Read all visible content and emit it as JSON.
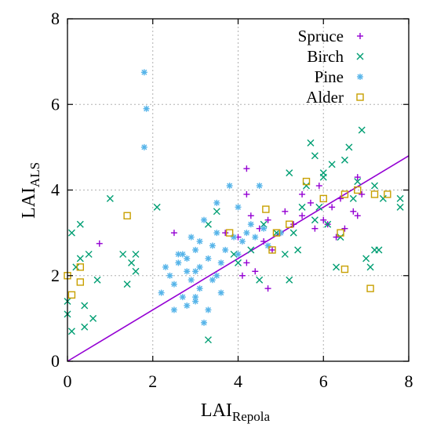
{
  "chart_data": {
    "type": "scatter",
    "title": "",
    "xlabel": "LAI",
    "xlabel_sub": "Repola",
    "ylabel": "LAI",
    "ylabel_sub": "ALS",
    "xlim": [
      0,
      8
    ],
    "ylim": [
      0,
      8
    ],
    "xticks": [
      0,
      2,
      4,
      6,
      8
    ],
    "yticks": [
      0,
      2,
      4,
      6,
      8
    ],
    "grid": true,
    "legend_position": "top-right",
    "reference_line": {
      "from": [
        0,
        0
      ],
      "to": [
        8,
        4.8
      ],
      "color": "#9400d3"
    },
    "series": [
      {
        "name": "Spruce",
        "marker": "plus",
        "color": "#9400d3",
        "points": [
          [
            0.75,
            2.75
          ],
          [
            2.5,
            3.0
          ],
          [
            3.7,
            3.0
          ],
          [
            4.0,
            2.9
          ],
          [
            4.2,
            4.5
          ],
          [
            4.2,
            3.9
          ],
          [
            4.3,
            3.4
          ],
          [
            4.5,
            3.1
          ],
          [
            4.6,
            2.8
          ],
          [
            4.7,
            3.3
          ],
          [
            4.8,
            2.6
          ],
          [
            5.0,
            3.0
          ],
          [
            5.1,
            3.5
          ],
          [
            5.3,
            3.2
          ],
          [
            5.5,
            3.4
          ],
          [
            5.7,
            3.7
          ],
          [
            5.8,
            3.1
          ],
          [
            5.9,
            4.1
          ],
          [
            6.0,
            3.3
          ],
          [
            6.1,
            3.2
          ],
          [
            6.2,
            3.6
          ],
          [
            6.3,
            2.9
          ],
          [
            6.4,
            3.8
          ],
          [
            6.5,
            3.1
          ],
          [
            6.7,
            3.5
          ],
          [
            6.8,
            4.3
          ],
          [
            6.9,
            3.9
          ],
          [
            4.1,
            2.0
          ],
          [
            4.2,
            2.3
          ],
          [
            4.4,
            2.1
          ],
          [
            4.7,
            1.7
          ],
          [
            5.5,
            3.9
          ],
          [
            6.8,
            3.4
          ]
        ]
      },
      {
        "name": "Birch",
        "marker": "cross",
        "color": "#009e73",
        "points": [
          [
            0.0,
            1.4
          ],
          [
            0.0,
            1.1
          ],
          [
            0.1,
            0.7
          ],
          [
            0.1,
            3.0
          ],
          [
            0.2,
            2.2
          ],
          [
            0.3,
            3.2
          ],
          [
            0.3,
            2.4
          ],
          [
            0.4,
            0.8
          ],
          [
            0.4,
            1.3
          ],
          [
            0.5,
            2.5
          ],
          [
            0.6,
            1.0
          ],
          [
            0.7,
            1.9
          ],
          [
            1.0,
            3.8
          ],
          [
            1.3,
            2.5
          ],
          [
            1.4,
            1.8
          ],
          [
            1.5,
            2.3
          ],
          [
            1.6,
            2.1
          ],
          [
            1.6,
            2.5
          ],
          [
            2.1,
            3.6
          ],
          [
            3.3,
            0.5
          ],
          [
            3.3,
            3.2
          ],
          [
            3.5,
            3.5
          ],
          [
            3.9,
            2.5
          ],
          [
            4.0,
            2.3
          ],
          [
            4.3,
            2.6
          ],
          [
            4.5,
            1.9
          ],
          [
            4.9,
            3.0
          ],
          [
            5.1,
            2.5
          ],
          [
            5.2,
            1.9
          ],
          [
            5.2,
            4.4
          ],
          [
            5.3,
            3.0
          ],
          [
            5.4,
            2.6
          ],
          [
            5.5,
            3.6
          ],
          [
            5.6,
            4.1
          ],
          [
            5.7,
            5.1
          ],
          [
            5.8,
            4.8
          ],
          [
            5.9,
            3.6
          ],
          [
            6.0,
            4.4
          ],
          [
            6.1,
            3.2
          ],
          [
            6.2,
            4.6
          ],
          [
            6.3,
            2.2
          ],
          [
            6.4,
            2.9
          ],
          [
            6.5,
            4.7
          ],
          [
            6.6,
            5.0
          ],
          [
            6.7,
            3.8
          ],
          [
            6.8,
            4.2
          ],
          [
            6.9,
            5.4
          ],
          [
            7.0,
            2.4
          ],
          [
            7.1,
            2.2
          ],
          [
            7.2,
            4.1
          ],
          [
            7.3,
            2.6
          ],
          [
            7.4,
            3.8
          ],
          [
            7.8,
            3.8
          ],
          [
            7.8,
            3.6
          ],
          [
            6.0,
            4.3
          ],
          [
            4.6,
            3.2
          ],
          [
            5.8,
            3.3
          ],
          [
            7.2,
            2.6
          ]
        ]
      },
      {
        "name": "Pine",
        "marker": "star",
        "color": "#56b4e9",
        "points": [
          [
            1.8,
            6.75
          ],
          [
            1.85,
            5.9
          ],
          [
            1.8,
            5.0
          ],
          [
            2.2,
            1.6
          ],
          [
            2.3,
            2.2
          ],
          [
            2.4,
            2.0
          ],
          [
            2.5,
            1.8
          ],
          [
            2.5,
            1.2
          ],
          [
            2.6,
            2.3
          ],
          [
            2.7,
            2.5
          ],
          [
            2.7,
            1.5
          ],
          [
            2.8,
            2.1
          ],
          [
            2.8,
            1.3
          ],
          [
            2.9,
            1.9
          ],
          [
            2.9,
            2.9
          ],
          [
            3.0,
            1.5
          ],
          [
            3.0,
            1.4
          ],
          [
            3.0,
            2.6
          ],
          [
            3.1,
            2.8
          ],
          [
            3.1,
            1.7
          ],
          [
            3.1,
            2.2
          ],
          [
            3.2,
            0.9
          ],
          [
            3.2,
            3.3
          ],
          [
            3.3,
            2.4
          ],
          [
            3.3,
            1.2
          ],
          [
            3.4,
            1.9
          ],
          [
            3.4,
            2.7
          ],
          [
            3.5,
            3.7
          ],
          [
            3.5,
            2.0
          ],
          [
            3.6,
            2.3
          ],
          [
            3.6,
            1.6
          ],
          [
            3.7,
            2.6
          ],
          [
            3.8,
            4.1
          ],
          [
            3.9,
            2.9
          ],
          [
            4.0,
            2.5
          ],
          [
            4.1,
            2.8
          ],
          [
            4.2,
            3.0
          ],
          [
            4.3,
            3.2
          ],
          [
            4.4,
            2.9
          ],
          [
            4.5,
            4.1
          ],
          [
            4.6,
            3.1
          ],
          [
            4.7,
            2.7
          ],
          [
            2.6,
            2.5
          ],
          [
            2.8,
            2.4
          ],
          [
            3.0,
            2.1
          ],
          [
            3.5,
            3.0
          ],
          [
            4.0,
            3.6
          ],
          [
            5.0,
            3.0
          ]
        ]
      },
      {
        "name": "Alder",
        "marker": "square",
        "color": "#c8a000",
        "points": [
          [
            0.0,
            2.0
          ],
          [
            0.1,
            1.55
          ],
          [
            0.3,
            1.85
          ],
          [
            0.3,
            2.2
          ],
          [
            1.4,
            3.4
          ],
          [
            3.8,
            3.0
          ],
          [
            4.65,
            3.55
          ],
          [
            4.8,
            2.6
          ],
          [
            4.9,
            3.0
          ],
          [
            5.2,
            3.2
          ],
          [
            5.6,
            4.2
          ],
          [
            6.0,
            3.8
          ],
          [
            6.4,
            3.0
          ],
          [
            6.5,
            3.9
          ],
          [
            6.5,
            2.15
          ],
          [
            6.8,
            4.0
          ],
          [
            7.1,
            1.7
          ],
          [
            7.2,
            3.9
          ],
          [
            7.5,
            3.9
          ]
        ]
      }
    ]
  }
}
